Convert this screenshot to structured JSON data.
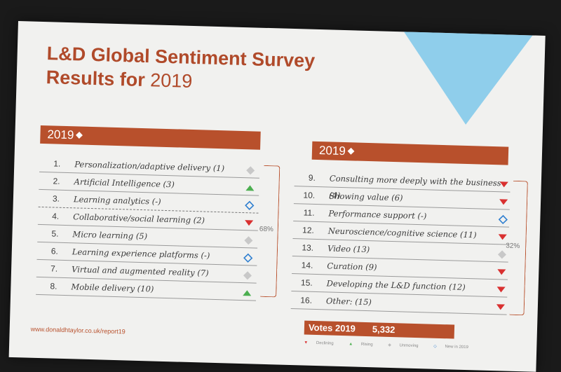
{
  "title": {
    "line1": "L&D Global Sentiment Survey",
    "line2": "Results for ",
    "year": "2019"
  },
  "colors": {
    "accent": "#b8502c",
    "declining": "#d93030",
    "rising": "#4caf50",
    "unmoving": "#c8c8c8",
    "new": "#2f7fd0"
  },
  "left_table": {
    "header": "2019",
    "percent": "68%",
    "rows": [
      {
        "num": "1.",
        "label": "Personalization/adaptive delivery (1)",
        "status": "unmoving"
      },
      {
        "num": "2.",
        "label": "Artificial Intelligence (3)",
        "status": "rising"
      },
      {
        "num": "3.",
        "label": "Learning analytics (-)",
        "status": "new"
      },
      {
        "num": "4.",
        "label": "Collaborative/social learning (2)",
        "status": "declining"
      },
      {
        "num": "5.",
        "label": "Micro learning (5)",
        "status": "unmoving"
      },
      {
        "num": "6.",
        "label": "Learning experience platforms (-)",
        "status": "new"
      },
      {
        "num": "7.",
        "label": "Virtual and augmented reality (7)",
        "status": "unmoving"
      },
      {
        "num": "8.",
        "label": "Mobile delivery (10)",
        "status": "rising"
      }
    ]
  },
  "right_table": {
    "header": "2019",
    "percent": "32%",
    "rows": [
      {
        "num": "9.",
        "label": "Consulting more deeply with the business (4)",
        "status": "declining"
      },
      {
        "num": "10.",
        "label": "Showing value (6)",
        "status": "declining"
      },
      {
        "num": "11.",
        "label": "Performance support (-)",
        "status": "new"
      },
      {
        "num": "12.",
        "label": "Neuroscience/cognitive science (11)",
        "status": "declining"
      },
      {
        "num": "13.",
        "label": "Video (13)",
        "status": "unmoving"
      },
      {
        "num": "14.",
        "label": "Curation (9)",
        "status": "declining"
      },
      {
        "num": "15.",
        "label": "Developing the L&D function (12)",
        "status": "declining"
      },
      {
        "num": "16.",
        "label": "Other: (15)",
        "status": "declining"
      }
    ]
  },
  "votes": {
    "label": "Votes 2019",
    "count": "5,332"
  },
  "url": "www.donaldhtaylor.co.uk/report19",
  "legend": {
    "declining": "Declining",
    "rising": "Rising",
    "unmoving": "Unmoving",
    "new": "New in 2019"
  }
}
